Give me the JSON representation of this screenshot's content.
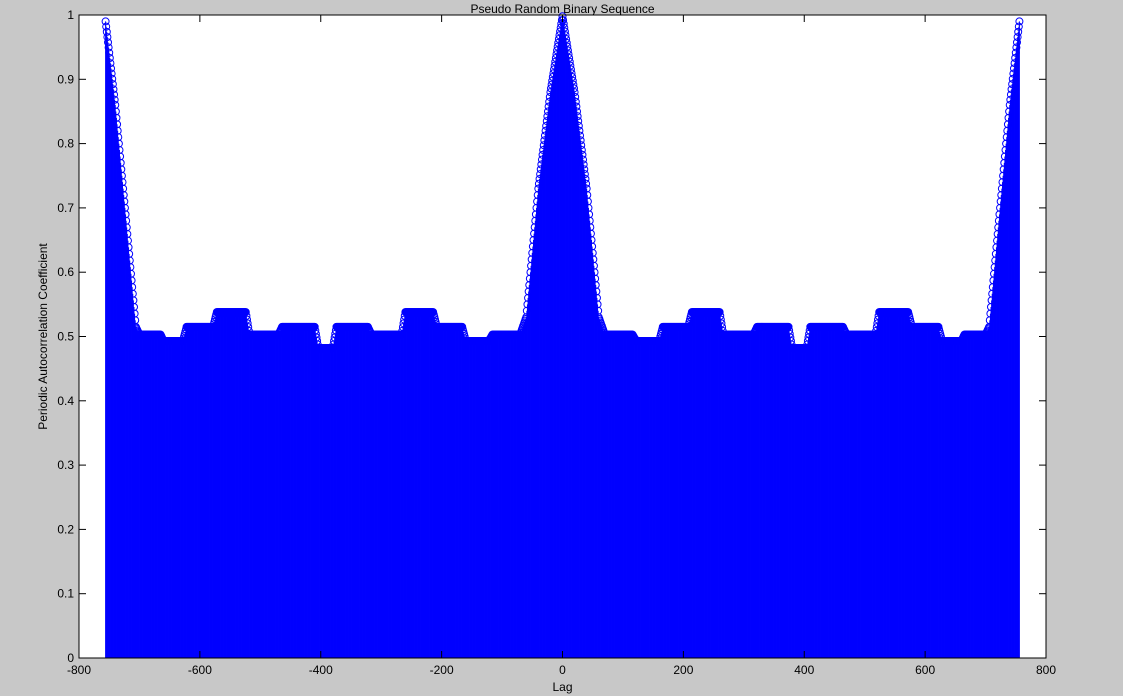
{
  "window": {
    "background": "#c8c8c8"
  },
  "chart_data": {
    "type": "stem",
    "title": "Pseudo Random Binary Sequence",
    "xlabel": "Lag",
    "ylabel": "Periodic Autocorrelation Coefficient",
    "xlim": [
      -800,
      800
    ],
    "ylim": [
      0,
      1
    ],
    "xticks": [
      -800,
      -600,
      -400,
      -200,
      0,
      200,
      400,
      600,
      800
    ],
    "yticks": [
      0,
      0.1,
      0.2,
      0.3,
      0.4,
      0.5,
      0.6,
      0.7,
      0.8,
      0.9,
      1
    ],
    "xtick_labels": [
      "-800",
      "-600",
      "-400",
      "-200",
      "0",
      "200",
      "400",
      "600",
      "800"
    ],
    "ytick_labels": [
      "0",
      "0.1",
      "0.2",
      "0.3",
      "0.4",
      "0.5",
      "0.6",
      "0.7",
      "0.8",
      "0.9",
      "1"
    ],
    "grid": false,
    "legend": "none",
    "series": [
      {
        "color": "#0000ff",
        "marker": "circle",
        "x_range": [
          -756,
          756
        ],
        "sampling_note": "stem at every integer lag; values interpolated between listed points",
        "profile": [
          [
            -756,
            0.99
          ],
          [
            -740,
            0.86
          ],
          [
            -722,
            0.68
          ],
          [
            -706,
            0.515
          ],
          [
            -700,
            0.503
          ],
          [
            -665,
            0.503
          ],
          [
            -660,
            0.493
          ],
          [
            -628,
            0.493
          ],
          [
            -622,
            0.515
          ],
          [
            -578,
            0.515
          ],
          [
            -572,
            0.538
          ],
          [
            -524,
            0.538
          ],
          [
            -518,
            0.503
          ],
          [
            -470,
            0.503
          ],
          [
            -464,
            0.515
          ],
          [
            -410,
            0.515
          ],
          [
            -404,
            0.482
          ],
          [
            -380,
            0.482
          ],
          [
            -374,
            0.515
          ],
          [
            -322,
            0.515
          ],
          [
            -316,
            0.503
          ],
          [
            -266,
            0.503
          ],
          [
            -260,
            0.538
          ],
          [
            -214,
            0.538
          ],
          [
            -208,
            0.515
          ],
          [
            -166,
            0.515
          ],
          [
            -160,
            0.493
          ],
          [
            -122,
            0.493
          ],
          [
            -116,
            0.503
          ],
          [
            -70,
            0.503
          ],
          [
            -60,
            0.53
          ],
          [
            -40,
            0.73
          ],
          [
            -20,
            0.88
          ],
          [
            0,
            0.998
          ],
          [
            20,
            0.88
          ],
          [
            40,
            0.73
          ],
          [
            60,
            0.53
          ],
          [
            70,
            0.503
          ],
          [
            116,
            0.503
          ],
          [
            122,
            0.493
          ],
          [
            160,
            0.493
          ],
          [
            166,
            0.515
          ],
          [
            208,
            0.515
          ],
          [
            214,
            0.538
          ],
          [
            260,
            0.538
          ],
          [
            266,
            0.503
          ],
          [
            316,
            0.503
          ],
          [
            322,
            0.515
          ],
          [
            374,
            0.515
          ],
          [
            380,
            0.482
          ],
          [
            404,
            0.482
          ],
          [
            410,
            0.515
          ],
          [
            464,
            0.515
          ],
          [
            470,
            0.503
          ],
          [
            518,
            0.503
          ],
          [
            524,
            0.538
          ],
          [
            572,
            0.538
          ],
          [
            578,
            0.515
          ],
          [
            622,
            0.515
          ],
          [
            628,
            0.493
          ],
          [
            660,
            0.493
          ],
          [
            665,
            0.503
          ],
          [
            700,
            0.503
          ],
          [
            706,
            0.515
          ],
          [
            722,
            0.68
          ],
          [
            740,
            0.86
          ],
          [
            756,
            0.99
          ]
        ]
      }
    ]
  }
}
